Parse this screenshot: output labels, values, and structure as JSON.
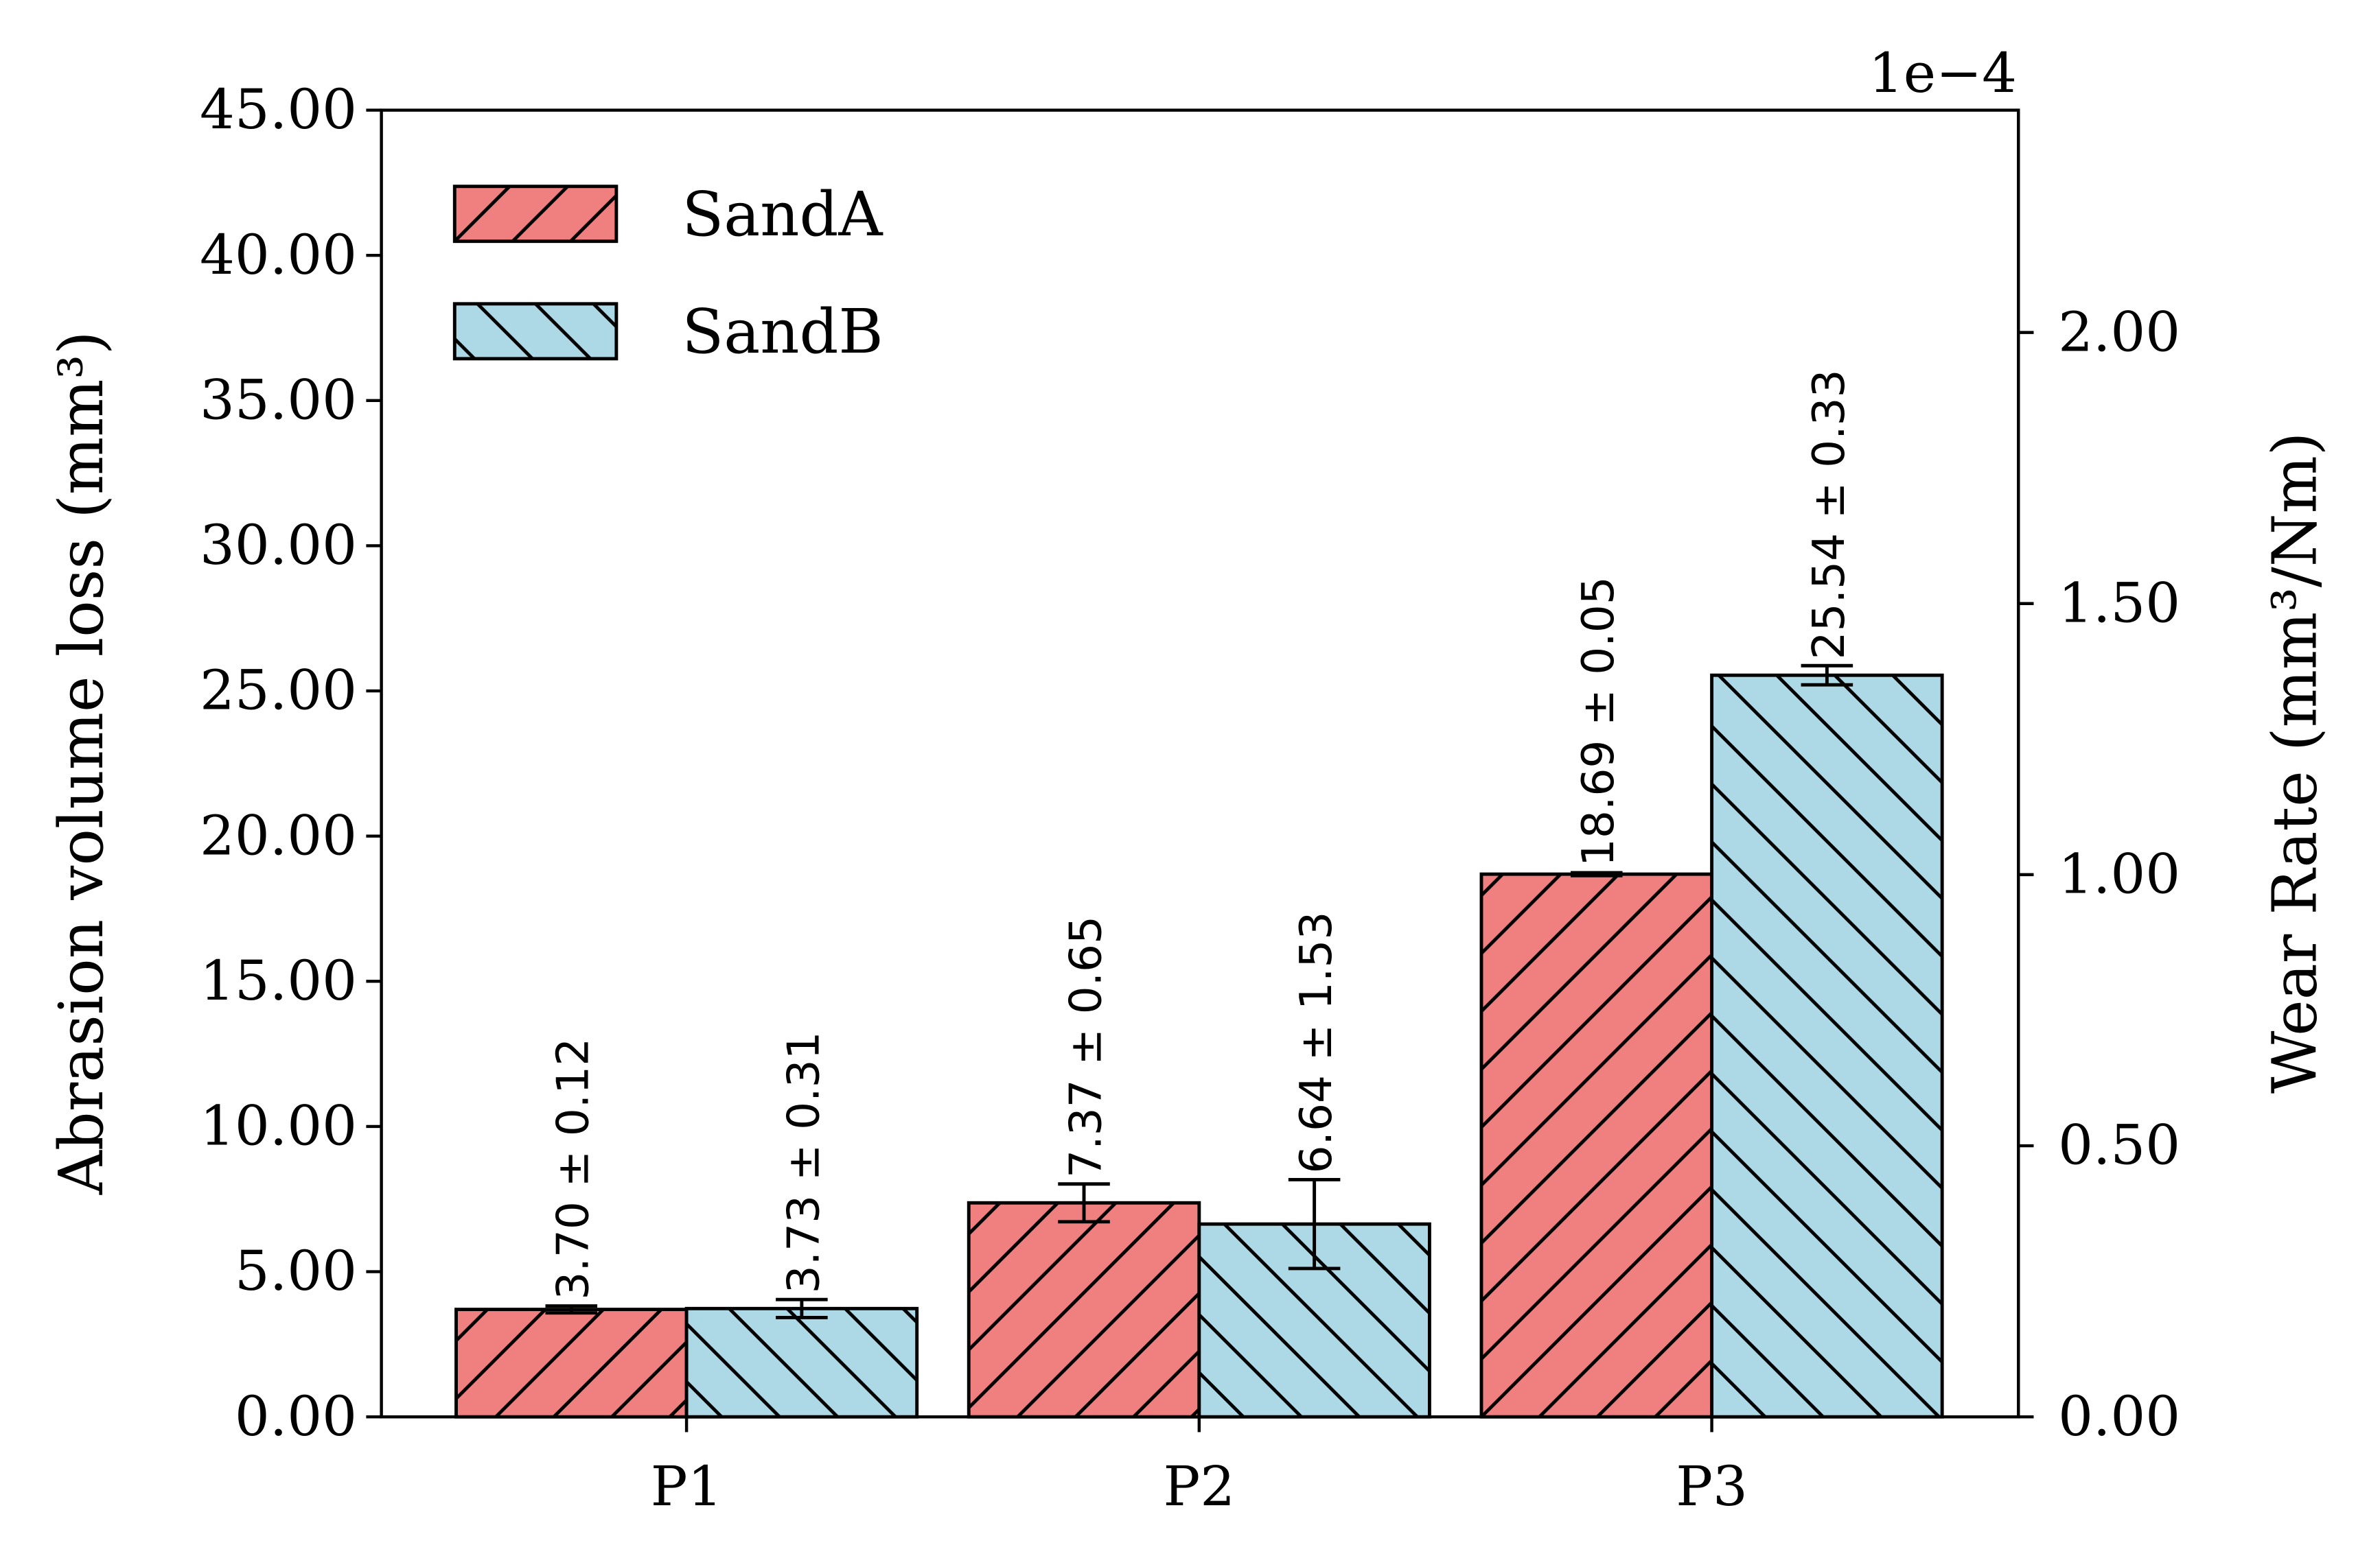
{
  "chart_data": {
    "type": "bar",
    "categories": [
      "P1",
      "P2",
      "P3"
    ],
    "series": [
      {
        "name": "SandA",
        "values": [
          3.7,
          7.37,
          18.69
        ],
        "errors": [
          0.12,
          0.65,
          0.05
        ],
        "labels": [
          "3.70 ± 0.12",
          "7.37 ± 0.65",
          "18.69 ± 0.05"
        ],
        "color": "#f08080",
        "hatch": "/"
      },
      {
        "name": "SandB",
        "values": [
          3.73,
          6.64,
          25.54
        ],
        "errors": [
          0.31,
          1.53,
          0.33
        ],
        "labels": [
          "3.73 ± 0.31",
          "6.64 ± 1.53",
          "25.54 ± 0.33"
        ],
        "color": "#add8e6",
        "hatch": "\\"
      }
    ],
    "ylabel": "Abrasion volume loss (mm³)",
    "ylim": [
      0,
      45
    ],
    "yticks": [
      "0.00",
      "5.00",
      "10.00",
      "15.00",
      "20.00",
      "25.00",
      "30.00",
      "35.00",
      "40.00",
      "45.00"
    ],
    "y2label": "Wear Rate (mm³/Nm)",
    "y2_offset_text": "1e−4",
    "y2ticks": [
      "0.00",
      "0.50",
      "1.00",
      "1.50",
      "2.00"
    ],
    "y2lim": [
      0,
      2.41
    ],
    "legend_placement": "upper-left",
    "grid": false
  }
}
